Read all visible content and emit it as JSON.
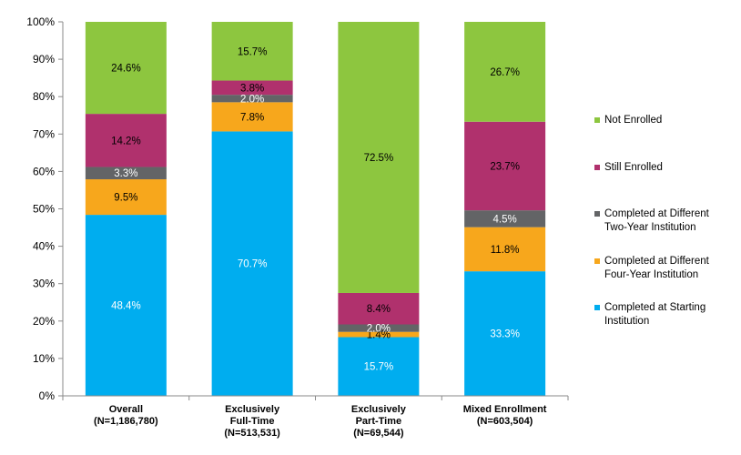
{
  "chart_data": {
    "type": "bar",
    "stacked": true,
    "categories": [
      [
        "Overall",
        "(N=1,186,780)"
      ],
      [
        "Exclusively",
        "Full-Time",
        "(N=513,531)"
      ],
      [
        "Exclusively",
        "Part-Time",
        "(N=69,544)"
      ],
      [
        "Mixed Enrollment",
        "(N=603,504)"
      ]
    ],
    "ylim": [
      0,
      100
    ],
    "yticks": [
      "0%",
      "10%",
      "20%",
      "30%",
      "40%",
      "50%",
      "60%",
      "70%",
      "80%",
      "90%",
      "100%"
    ],
    "grid": false,
    "legend_position": "right",
    "series": [
      {
        "name": "Completed at Starting Institution",
        "legend_lines": [
          "Completed at Starting",
          "Institution"
        ],
        "color": "#00adef",
        "label_color": "#ffffff",
        "values": [
          48.4,
          70.7,
          15.7,
          33.3
        ],
        "labels": [
          "48.4%",
          "70.7%",
          "15.7%",
          "33.3%"
        ]
      },
      {
        "name": "Completed at Different Four-Year Institution",
        "legend_lines": [
          "Completed at Different",
          "Four-Year Institution"
        ],
        "color": "#f7a71c",
        "label_color": "#000000",
        "values": [
          9.5,
          7.8,
          1.4,
          11.8
        ],
        "labels": [
          "9.5%",
          "7.8%",
          "1.4%",
          "11.8%"
        ]
      },
      {
        "name": "Completed at Different Two-Year Institution",
        "legend_lines": [
          "Completed at Different",
          "Two-Year Institution"
        ],
        "color": "#636466",
        "label_color": "#ffffff",
        "values": [
          3.3,
          2.0,
          2.0,
          4.5
        ],
        "labels": [
          "3.3%",
          "2.0%",
          "2.0%",
          "4.5%"
        ]
      },
      {
        "name": "Still Enrolled",
        "legend_lines": [
          "Still Enrolled"
        ],
        "color": "#b0316d",
        "label_color": "#000000",
        "values": [
          14.2,
          3.8,
          8.4,
          23.7
        ],
        "labels": [
          "14.2%",
          "3.8%",
          "8.4%",
          "23.7%"
        ]
      },
      {
        "name": "Not Enrolled",
        "legend_lines": [
          "Not Enrolled"
        ],
        "color": "#8dc63f",
        "label_color": "#000000",
        "values": [
          24.6,
          15.7,
          72.5,
          26.7
        ],
        "labels": [
          "24.6%",
          "15.7%",
          "72.5%",
          "26.7%"
        ]
      }
    ]
  }
}
